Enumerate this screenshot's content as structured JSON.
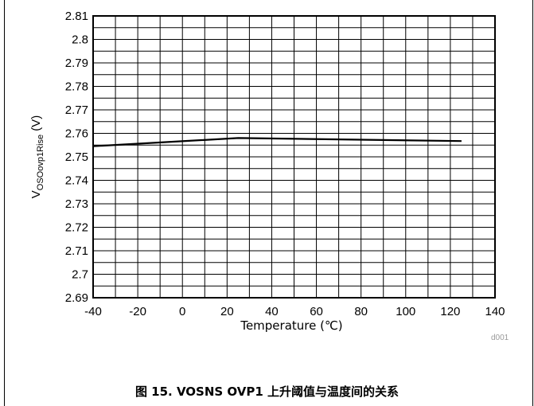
{
  "chart_data": {
    "type": "line",
    "xlabel": "Temperature (℃)",
    "ylabel": {
      "main": "V",
      "sub": "OSOovp1Rise",
      "unit": " (V)"
    },
    "xlim": [
      -40,
      140
    ],
    "ylim": [
      2.69,
      2.81
    ],
    "x_ticks": [
      "-40",
      "-20",
      "0",
      "20",
      "40",
      "60",
      "80",
      "100",
      "120",
      "140"
    ],
    "y_ticks": [
      "2.69",
      "2.7",
      "2.71",
      "2.72",
      "2.73",
      "2.74",
      "2.75",
      "2.76",
      "2.77",
      "2.78",
      "2.79",
      "2.8",
      "2.81"
    ],
    "x_minor_step": 10,
    "y_minor_step": 0.005,
    "grid": true,
    "series": [
      {
        "x": [
          -40,
          25,
          125
        ],
        "y": [
          2.7545,
          2.758,
          2.7567
        ]
      }
    ]
  },
  "figure": {
    "watermark": "d001",
    "caption": "图 15. VOSNS OVP1 上升阈值与温度间的关系"
  }
}
